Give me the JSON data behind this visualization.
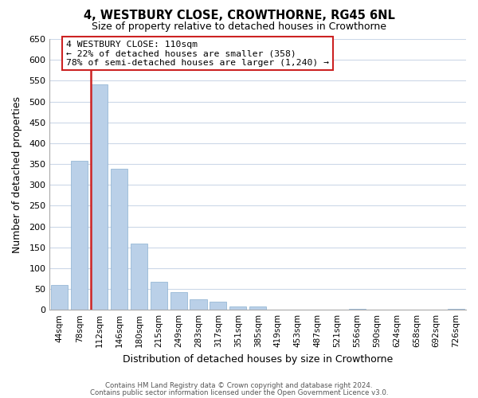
{
  "title": "4, WESTBURY CLOSE, CROWTHORNE, RG45 6NL",
  "subtitle": "Size of property relative to detached houses in Crowthorne",
  "xlabel": "Distribution of detached houses by size in Crowthorne",
  "ylabel": "Number of detached properties",
  "bar_labels": [
    "44sqm",
    "78sqm",
    "112sqm",
    "146sqm",
    "180sqm",
    "215sqm",
    "249sqm",
    "283sqm",
    "317sqm",
    "351sqm",
    "385sqm",
    "419sqm",
    "453sqm",
    "487sqm",
    "521sqm",
    "556sqm",
    "590sqm",
    "624sqm",
    "658sqm",
    "692sqm",
    "726sqm"
  ],
  "bar_values": [
    60,
    357,
    541,
    338,
    158,
    68,
    42,
    25,
    20,
    8,
    8,
    0,
    0,
    0,
    0,
    3,
    0,
    0,
    0,
    0,
    3
  ],
  "bar_color": "#bad0e8",
  "bar_edge_color": "#8aafd0",
  "highlight_bar_index": 2,
  "annotation_title": "4 WESTBURY CLOSE: 110sqm",
  "annotation_line1": "← 22% of detached houses are smaller (358)",
  "annotation_line2": "78% of semi-detached houses are larger (1,240) →",
  "annotation_box_color": "#ffffff",
  "annotation_box_edge": "#cc2222",
  "vline_color": "#cc2222",
  "ylim": [
    0,
    650
  ],
  "yticks": [
    0,
    50,
    100,
    150,
    200,
    250,
    300,
    350,
    400,
    450,
    500,
    550,
    600,
    650
  ],
  "footer1": "Contains HM Land Registry data © Crown copyright and database right 2024.",
  "footer2": "Contains public sector information licensed under the Open Government Licence v3.0.",
  "background_color": "#ffffff",
  "grid_color": "#ccd8e8"
}
